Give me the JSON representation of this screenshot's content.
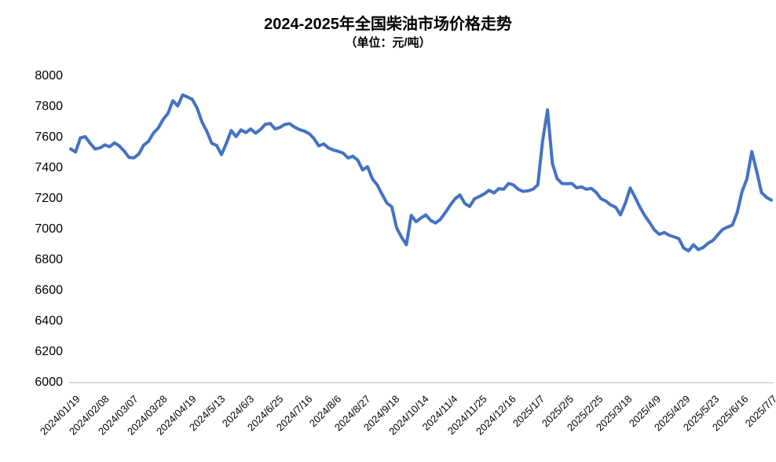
{
  "chart": {
    "title": "2024-2025年全国柴油市场价格走势",
    "subtitle": "（单位：元/吨）"
  },
  "colors": {
    "line": "#4472C4",
    "axis": "#D9D9D9",
    "text": "#000000",
    "background": "#FFFFFF"
  },
  "chart_data": {
    "type": "line",
    "title": "2024-2025年全国柴油市场价格走势",
    "subtitle": "（单位：元/吨）",
    "unit": "元/吨",
    "ylim": [
      6000,
      8000
    ],
    "ytick_interval": 200,
    "yticks": [
      8000,
      7800,
      7600,
      7400,
      7200,
      7000,
      6800,
      6600,
      6400,
      6200,
      6000
    ],
    "categories": [
      "2024/01/19",
      "2024/02/08",
      "2024/03/07",
      "2024/03/28",
      "2024/04/19",
      "2024/5/13",
      "2024/6/3",
      "2024/6/25",
      "2024/7/16",
      "2024/8/6",
      "2024/8/27",
      "2024/9/18",
      "2024/10/14",
      "2024/11/4",
      "2024/11/25",
      "2024/12/16",
      "2025/1/7",
      "2025/2/5",
      "2025/2/25",
      "2025/3/18",
      "2025/4/9",
      "2025/4/29",
      "2025/5/23",
      "2025/6/16",
      "2025/7/7"
    ],
    "points_per_tick_interval": 6,
    "line_color": "#4472C4",
    "line_width": 4,
    "grid": false,
    "legend": "none",
    "values": [
      7525,
      7505,
      7598,
      7605,
      7562,
      7525,
      7532,
      7552,
      7540,
      7565,
      7545,
      7512,
      7470,
      7467,
      7492,
      7550,
      7575,
      7628,
      7662,
      7718,
      7758,
      7840,
      7806,
      7878,
      7864,
      7848,
      7790,
      7700,
      7640,
      7562,
      7548,
      7488,
      7562,
      7645,
      7606,
      7650,
      7632,
      7656,
      7628,
      7652,
      7686,
      7692,
      7656,
      7666,
      7685,
      7690,
      7668,
      7652,
      7642,
      7626,
      7594,
      7545,
      7558,
      7532,
      7518,
      7510,
      7498,
      7466,
      7478,
      7452,
      7388,
      7410,
      7330,
      7290,
      7230,
      7172,
      7148,
      7010,
      6950,
      6900,
      7092,
      7050,
      7075,
      7095,
      7058,
      7042,
      7066,
      7110,
      7158,
      7200,
      7225,
      7170,
      7150,
      7200,
      7215,
      7232,
      7256,
      7238,
      7266,
      7262,
      7300,
      7290,
      7262,
      7248,
      7252,
      7262,
      7290,
      7580,
      7780,
      7430,
      7330,
      7300,
      7298,
      7300,
      7272,
      7278,
      7262,
      7268,
      7242,
      7200,
      7185,
      7160,
      7145,
      7095,
      7172,
      7270,
      7210,
      7145,
      7090,
      7045,
      6996,
      6968,
      6980,
      6962,
      6952,
      6940,
      6878,
      6860,
      6900,
      6868,
      6882,
      6910,
      6928,
      6965,
      7000,
      7015,
      7028,
      7110,
      7248,
      7330,
      7508,
      7380,
      7240,
      7210,
      7192
    ]
  }
}
